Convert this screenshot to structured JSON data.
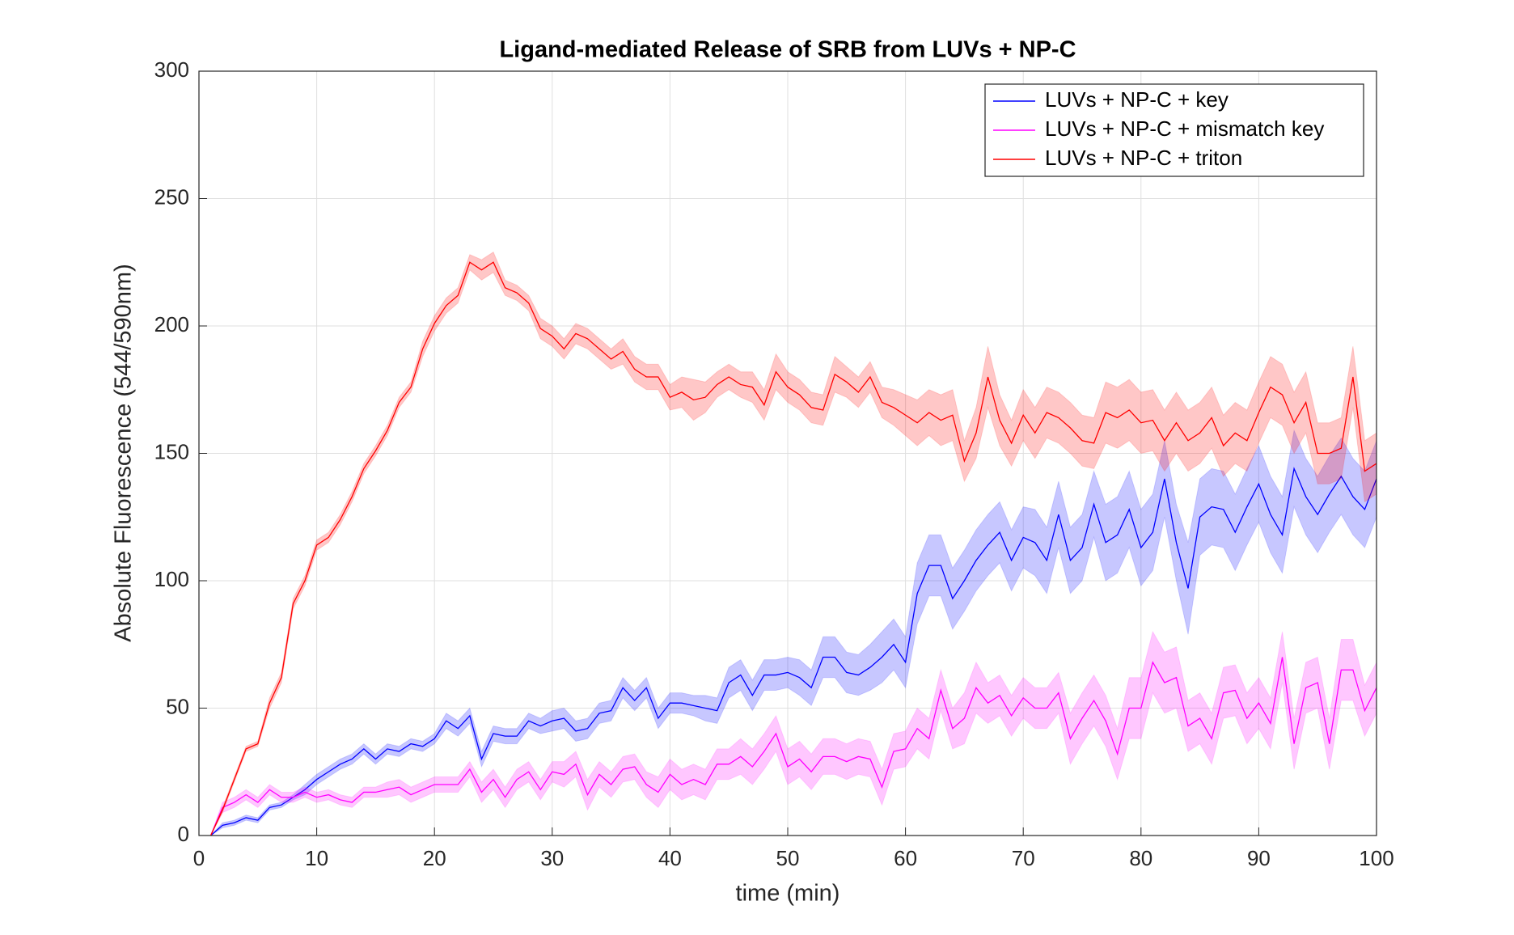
{
  "chart_data": {
    "type": "line",
    "title": "Ligand-mediated Release of SRB from LUVs + NP-C",
    "x_label": "time (min)",
    "y_label": "Absolute Fluorescence (544/590nm)",
    "xlim": [
      0,
      100
    ],
    "ylim": [
      0,
      300
    ],
    "xticks": [
      0,
      10,
      20,
      30,
      40,
      50,
      60,
      70,
      80,
      90,
      100
    ],
    "yticks": [
      0,
      50,
      100,
      150,
      200,
      250,
      300
    ],
    "grid": true,
    "legend": "upper right",
    "x": [
      1,
      2,
      3,
      4,
      5,
      6,
      7,
      8,
      9,
      10,
      11,
      12,
      13,
      14,
      15,
      16,
      17,
      18,
      19,
      20,
      21,
      22,
      23,
      24,
      25,
      26,
      27,
      28,
      29,
      30,
      31,
      32,
      33,
      34,
      35,
      36,
      37,
      38,
      39,
      40,
      41,
      42,
      43,
      44,
      45,
      46,
      47,
      48,
      49,
      50,
      51,
      52,
      53,
      54,
      55,
      56,
      57,
      58,
      59,
      60,
      61,
      62,
      63,
      64,
      65,
      66,
      67,
      68,
      69,
      70,
      71,
      72,
      73,
      74,
      75,
      76,
      77,
      78,
      79,
      80,
      81,
      82,
      83,
      84,
      85,
      86,
      87,
      88,
      89,
      90,
      91,
      92,
      93,
      94,
      95,
      96,
      97,
      98,
      99,
      100
    ],
    "series": [
      {
        "name": "LUVs + NP-C + key",
        "color": "#0000ff",
        "values": [
          0,
          4,
          5,
          7,
          6,
          11,
          12,
          15,
          18,
          22,
          25,
          28,
          30,
          34,
          30,
          34,
          33,
          36,
          35,
          38,
          45,
          42,
          47,
          30,
          40,
          39,
          39,
          45,
          43,
          45,
          46,
          41,
          42,
          48,
          49,
          58,
          53,
          58,
          46,
          52,
          52,
          51,
          50,
          49,
          60,
          63,
          55,
          63,
          63,
          64,
          62,
          58,
          70,
          70,
          64,
          63,
          66,
          70,
          75,
          68,
          95,
          106,
          106,
          93,
          100,
          108,
          114,
          119,
          108,
          117,
          115,
          108,
          126,
          108,
          113,
          130,
          115,
          118,
          128,
          113,
          119,
          140,
          115,
          97,
          125,
          129,
          128,
          119,
          129,
          138,
          126,
          118,
          144,
          133,
          126,
          134,
          141,
          133,
          128,
          140
        ],
        "error": [
          0,
          1,
          1,
          1,
          1,
          1,
          1,
          1,
          2,
          2,
          2,
          2,
          2,
          2,
          2,
          2,
          2,
          2,
          2,
          2,
          3,
          3,
          3,
          3,
          3,
          3,
          3,
          3,
          3,
          4,
          4,
          4,
          4,
          4,
          4,
          4,
          4,
          4,
          4,
          4,
          4,
          4,
          5,
          5,
          6,
          6,
          6,
          6,
          6,
          6,
          7,
          7,
          8,
          8,
          8,
          8,
          9,
          10,
          10,
          10,
          12,
          12,
          12,
          12,
          12,
          12,
          12,
          12,
          12,
          12,
          13,
          13,
          13,
          13,
          13,
          13,
          15,
          15,
          15,
          15,
          15,
          15,
          15,
          18,
          15,
          15,
          15,
          15,
          15,
          15,
          15,
          15,
          15,
          15,
          15,
          15,
          15,
          15,
          15,
          15
        ]
      },
      {
        "name": "LUVs + NP-C + mismatch key",
        "color": "#ff00ff",
        "values": [
          0,
          11,
          13,
          16,
          13,
          18,
          15,
          15,
          17,
          15,
          16,
          14,
          13,
          17,
          17,
          18,
          19,
          16,
          18,
          20,
          20,
          20,
          26,
          17,
          22,
          15,
          22,
          25,
          18,
          25,
          24,
          28,
          16,
          24,
          20,
          26,
          27,
          20,
          17,
          24,
          20,
          22,
          20,
          28,
          28,
          31,
          27,
          33,
          40,
          27,
          30,
          25,
          31,
          31,
          29,
          31,
          30,
          19,
          33,
          34,
          42,
          38,
          57,
          42,
          46,
          58,
          52,
          55,
          47,
          54,
          50,
          50,
          56,
          38,
          46,
          53,
          45,
          32,
          50,
          50,
          68,
          60,
          62,
          43,
          46,
          38,
          56,
          57,
          46,
          52,
          44,
          70,
          36,
          58,
          60,
          36,
          65,
          65,
          49,
          58
        ],
        "error": [
          0,
          2,
          2,
          2,
          2,
          2,
          2,
          2,
          2,
          2,
          2,
          2,
          2,
          2,
          2,
          3,
          3,
          3,
          3,
          3,
          3,
          3,
          3,
          4,
          4,
          4,
          4,
          4,
          4,
          4,
          5,
          5,
          6,
          5,
          5,
          5,
          5,
          5,
          6,
          6,
          6,
          6,
          6,
          6,
          6,
          7,
          7,
          7,
          7,
          7,
          7,
          7,
          7,
          7,
          7,
          7,
          7,
          7,
          7,
          7,
          8,
          8,
          8,
          8,
          10,
          10,
          8,
          8,
          8,
          8,
          8,
          8,
          8,
          10,
          10,
          10,
          10,
          10,
          12,
          12,
          12,
          12,
          12,
          10,
          10,
          10,
          10,
          10,
          10,
          10,
          10,
          10,
          10,
          10,
          10,
          10,
          12,
          12,
          10,
          10
        ]
      },
      {
        "name": "LUVs + NP-C + triton",
        "color": "#ff0000",
        "values": [
          0,
          10,
          22,
          34,
          36,
          52,
          62,
          91,
          100,
          114,
          117,
          124,
          133,
          144,
          151,
          159,
          170,
          176,
          191,
          201,
          208,
          212,
          225,
          222,
          225,
          215,
          213,
          209,
          199,
          196,
          191,
          197,
          195,
          191,
          187,
          190,
          183,
          180,
          180,
          172,
          174,
          171,
          172,
          177,
          180,
          177,
          176,
          169,
          182,
          176,
          173,
          168,
          167,
          181,
          178,
          174,
          180,
          170,
          168,
          165,
          162,
          166,
          163,
          165,
          147,
          158,
          180,
          163,
          154,
          165,
          158,
          166,
          164,
          160,
          155,
          154,
          166,
          164,
          167,
          162,
          163,
          155,
          162,
          155,
          158,
          164,
          153,
          158,
          155,
          166,
          176,
          173,
          162,
          170,
          150,
          150,
          152,
          180,
          143,
          146
        ],
        "error": [
          0,
          1,
          1,
          1,
          1,
          2,
          2,
          2,
          2,
          2,
          2,
          2,
          2,
          2,
          2,
          2,
          2,
          2,
          3,
          3,
          3,
          3,
          3,
          4,
          4,
          3,
          3,
          3,
          4,
          4,
          4,
          4,
          4,
          4,
          4,
          5,
          5,
          5,
          5,
          5,
          6,
          8,
          6,
          5,
          5,
          5,
          6,
          6,
          7,
          6,
          6,
          6,
          6,
          7,
          6,
          6,
          6,
          6,
          7,
          8,
          9,
          9,
          10,
          10,
          8,
          10,
          12,
          10,
          9,
          10,
          10,
          10,
          10,
          10,
          10,
          10,
          12,
          12,
          12,
          12,
          12,
          12,
          12,
          12,
          12,
          12,
          12,
          12,
          12,
          12,
          12,
          12,
          12,
          12,
          12,
          12,
          12,
          12,
          12,
          12
        ]
      }
    ]
  }
}
